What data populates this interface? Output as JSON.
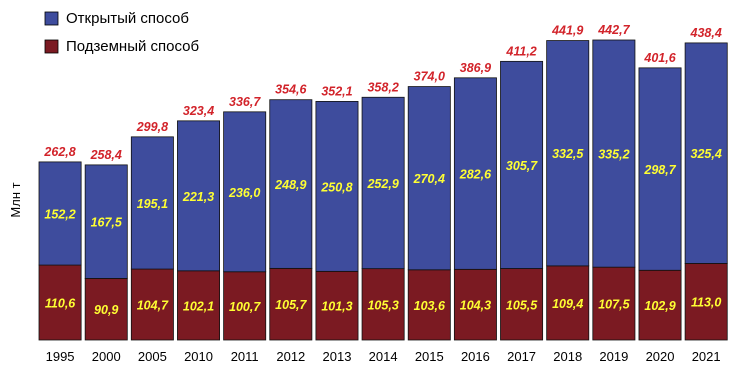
{
  "chart_data": {
    "type": "bar",
    "stacked": true,
    "ylabel": "Млн т",
    "categories": [
      "1995",
      "2000",
      "2005",
      "2010",
      "2011",
      "2012",
      "2013",
      "2014",
      "2015",
      "2016",
      "2017",
      "2018",
      "2019",
      "2020",
      "2021"
    ],
    "series": [
      {
        "name": "Подземный способ",
        "color": "#7b1a22",
        "values": [
          110.6,
          90.9,
          104.7,
          102.1,
          100.7,
          105.7,
          101.3,
          105.3,
          103.6,
          104.3,
          105.5,
          109.4,
          107.5,
          102.9,
          113.0
        ],
        "labels": [
          "110,6",
          "90,9",
          "104,7",
          "102,1",
          "100,7",
          "105,7",
          "101,3",
          "105,3",
          "103,6",
          "104,3",
          "105,5",
          "109,4",
          "107,5",
          "102,9",
          "113,0"
        ]
      },
      {
        "name": "Открытый способ",
        "color": "#3e4c9d",
        "values": [
          152.2,
          167.5,
          195.1,
          221.3,
          236.0,
          248.9,
          250.8,
          252.9,
          270.4,
          282.6,
          305.7,
          332.5,
          335.2,
          298.7,
          325.4
        ],
        "labels": [
          "152,2",
          "167,5",
          "195,1",
          "221,3",
          "236,0",
          "248,9",
          "250,8",
          "252,9",
          "270,4",
          "282,6",
          "305,7",
          "332,5",
          "335,2",
          "298,7",
          "325,4"
        ]
      }
    ],
    "totals": [
      262.8,
      258.4,
      299.8,
      323.4,
      336.7,
      354.6,
      352.1,
      358.2,
      374.0,
      386.9,
      411.2,
      441.9,
      442.7,
      401.6,
      438.4
    ],
    "total_labels": [
      "262,8",
      "258,4",
      "299,8",
      "323,4",
      "336,7",
      "354,6",
      "352,1",
      "358,2",
      "374,0",
      "386,9",
      "411,2",
      "441,9",
      "442,7",
      "401,6",
      "438,4"
    ],
    "ylim": [
      0,
      442.7
    ],
    "grid": false,
    "legend_position": "top-left"
  }
}
